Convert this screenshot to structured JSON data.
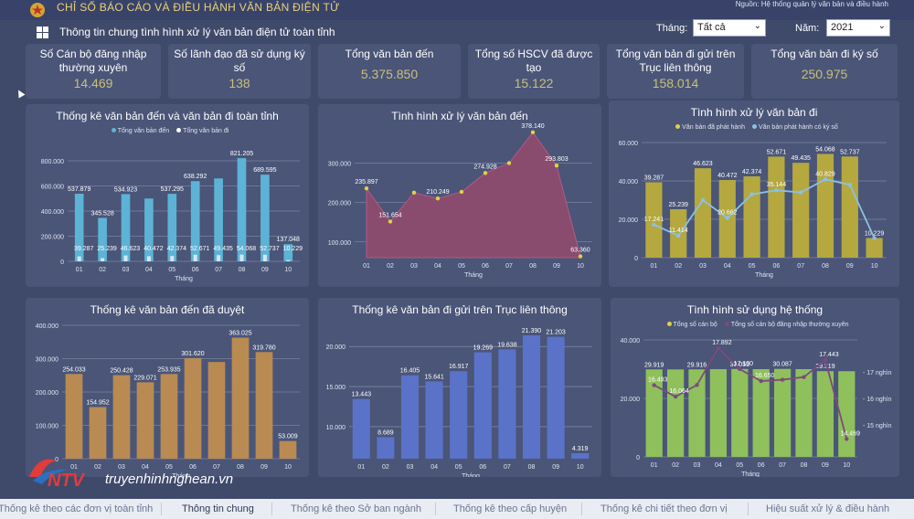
{
  "header": {
    "title": "CHỈ SỐ BÁO CÁO VÀ ĐIỀU HÀNH VĂN BẢN ĐIỆN TỬ",
    "source": "Nguồn: Hệ thống quản lý văn bản và điều hành",
    "subtitle": "Thông tin chung tình hình xử lý văn bản điện tử toàn tỉnh"
  },
  "filters": {
    "month_label": "Tháng:",
    "month_value": "Tất cả",
    "year_label": "Năm:",
    "year_value": "2021"
  },
  "kpis": [
    {
      "label": "Số Cán bộ đăng nhập thường xuyên",
      "value": "14.469"
    },
    {
      "label": "Số lãnh đạo đã sử dụng ký số",
      "value": "138"
    },
    {
      "label": "Tổng văn bản đến",
      "value": "5.375.850"
    },
    {
      "label": "Tổng số HSCV đã được tạo",
      "value": "15.122"
    },
    {
      "label": "Tổng văn bản đi gửi trên Trục liên thông",
      "value": "158.014"
    },
    {
      "label": "Tổng văn bản đi ký số",
      "value": "250.975"
    }
  ],
  "colors": {
    "blue_bar": "#5db3d6",
    "area": "#8a4c6e",
    "olive_bar": "#b4a83f",
    "orange_bar": "#b98a52",
    "indigo_bar": "#5a72c7",
    "green_bar": "#8fc05c",
    "yellow_dot": "#e1d145",
    "lightblue_line": "#8cc0e4",
    "purple_line": "#7d4a7e"
  },
  "chart_data": [
    {
      "id": "c1",
      "type": "bar",
      "title": "Thống kê văn bản đến và văn bản đi toàn tỉnh",
      "xlabel": "Tháng",
      "categories": [
        "01",
        "02",
        "03",
        "04",
        "05",
        "06",
        "07",
        "08",
        "09",
        "10"
      ],
      "ylim": [
        0,
        800000
      ],
      "yticks": [
        "0",
        "200.000",
        "400.000",
        "600.000",
        "800.000"
      ],
      "series": [
        {
          "name": "Tổng văn bản đến",
          "values": [
            537879,
            345528,
            534923,
            500000,
            537295,
            638292,
            660000,
            821205,
            689595,
            137048
          ],
          "labels": [
            "537.879",
            "345.528",
            "534.923",
            "",
            "537.295",
            "638.292",
            "",
            "821.205",
            "689.595",
            "137.048"
          ]
        },
        {
          "name": "Tổng văn bản đi",
          "values": [
            39287,
            25239,
            46623,
            40472,
            42374,
            52671,
            49435,
            54068,
            52737,
            10229
          ],
          "labels": [
            "39.287",
            "25.239",
            "46.623",
            "40.472",
            "42.374",
            "52.671",
            "49.435",
            "54.068",
            "52.737",
            "10.229"
          ]
        }
      ]
    },
    {
      "id": "c2",
      "type": "area",
      "title": "Tình hình xử lý văn bản đến",
      "xlabel": "Tháng",
      "categories": [
        "01",
        "02",
        "03",
        "04",
        "05",
        "06",
        "07",
        "08",
        "09",
        "10"
      ],
      "ylim": [
        60000,
        380000
      ],
      "yticks": [
        "100.000",
        "200.000",
        "300.000"
      ],
      "series": [
        {
          "name": "",
          "values": [
            235897,
            151654,
            225000,
            210249,
            227000,
            274928,
            300000,
            378140,
            293803,
            63360
          ],
          "labels": [
            "235.897",
            "151.654",
            "",
            "210.249",
            "",
            "274.928",
            "",
            "378.140",
            "293.803",
            "63.360"
          ]
        }
      ]
    },
    {
      "id": "c3",
      "type": "bar",
      "title": "Tình hình xử lý văn bản đi",
      "xlabel": "Tháng",
      "categories": [
        "01",
        "02",
        "03",
        "04",
        "05",
        "06",
        "07",
        "08",
        "09",
        "10"
      ],
      "ylim": [
        0,
        60000
      ],
      "yticks": [
        "0",
        "20.000",
        "40.000",
        "60.000"
      ],
      "series": [
        {
          "name": "Văn bản đã phát hành",
          "values": [
            39287,
            25239,
            46623,
            40472,
            42374,
            52671,
            49435,
            54068,
            52737,
            10229
          ],
          "labels": [
            "39.287",
            "25.239",
            "46.623",
            "40.472",
            "42.374",
            "52.671",
            "49.435",
            "54.068",
            "52.737",
            "10.229"
          ]
        },
        {
          "name": "Văn bản phát hành có ký số",
          "values": [
            17241,
            11414,
            30000,
            20662,
            33000,
            35144,
            34000,
            40829,
            38000,
            10229
          ],
          "labels": [
            "17.241",
            "11.414",
            "",
            "20.662",
            "",
            "35.144",
            "",
            "40.829",
            "",
            ""
          ]
        }
      ]
    },
    {
      "id": "c4",
      "type": "bar",
      "title": "Thống kê văn bản đến đã duyệt",
      "xlabel": "Tháng",
      "categories": [
        "01",
        "02",
        "03",
        "04",
        "05",
        "06",
        "07",
        "08",
        "09",
        "10"
      ],
      "ylim": [
        0,
        400000
      ],
      "yticks": [
        "0",
        "100.000",
        "200.000",
        "300.000",
        "400.000"
      ],
      "series": [
        {
          "name": "",
          "values": [
            254033,
            154952,
            250428,
            229071,
            253935,
            301620,
            290000,
            363025,
            319780,
            53009
          ],
          "labels": [
            "254.033",
            "154.952",
            "250.428",
            "229.071",
            "253.935",
            "301.620",
            "",
            "363.025",
            "319.780",
            "53.009"
          ]
        }
      ]
    },
    {
      "id": "c5",
      "type": "bar",
      "title": "Thống kê văn bản đi gửi trên Trục liên thông",
      "xlabel": "Tháng",
      "categories": [
        "01",
        "02",
        "03",
        "04",
        "05",
        "06",
        "07",
        "08",
        "09",
        "10"
      ],
      "ylim": [
        0,
        21000
      ],
      "yticks": [
        "10.000",
        "15.000",
        "20.000"
      ],
      "series": [
        {
          "name": "",
          "values": [
            13443,
            8689,
            16405,
            15641,
            16917,
            19269,
            19638,
            21390,
            21203,
            4319
          ],
          "labels": [
            "13.443",
            "8.689",
            "16.405",
            "15.641",
            "16.917",
            "19.269",
            "19.638",
            "21.390",
            "21.203",
            "4.319"
          ]
        }
      ]
    },
    {
      "id": "c6",
      "type": "bar",
      "title": "Tình hình sử dụng hệ thống",
      "xlabel": "Tháng",
      "categories": [
        "01",
        "02",
        "03",
        "04",
        "05",
        "06",
        "07",
        "08",
        "09",
        "10"
      ],
      "ylim": [
        0,
        40000
      ],
      "yticks": [
        "0",
        "20.000",
        "40.000"
      ],
      "y2ticks": [
        "15 nghìn",
        "16 nghìn",
        "17 nghìn"
      ],
      "series": [
        {
          "name": "Tổng số cán bộ",
          "values": [
            29919,
            29900,
            29916,
            30000,
            30055,
            30000,
            30087,
            30000,
            29319,
            29300
          ],
          "labels": [
            "29.919",
            "",
            "29.916",
            "",
            "30.055",
            "",
            "30.087",
            "",
            "29.319",
            ""
          ]
        },
        {
          "name": "Tổng số cán bộ đăng nhập thường xuyên",
          "values": [
            16493,
            16064,
            16500,
            17892,
            17100,
            16650,
            16700,
            16800,
            17443,
            14469
          ],
          "labels": [
            "16.493",
            "16.064",
            "",
            "17.892",
            "17.100",
            "16.650",
            "",
            "",
            "17.443",
            "14.469"
          ]
        }
      ]
    }
  ],
  "tabs": [
    "Thống kê theo các đơn vị toàn tỉnh",
    "Thông tin chung",
    "Thống kê theo Sở ban ngành",
    "Thống kê theo cấp huyện",
    "Thống kê chi tiết theo đơn vị",
    "Hiệu suất xử lý & điều hành"
  ],
  "watermark": {
    "brand": "NTV",
    "site": "truyenhinhnghean.vn"
  }
}
